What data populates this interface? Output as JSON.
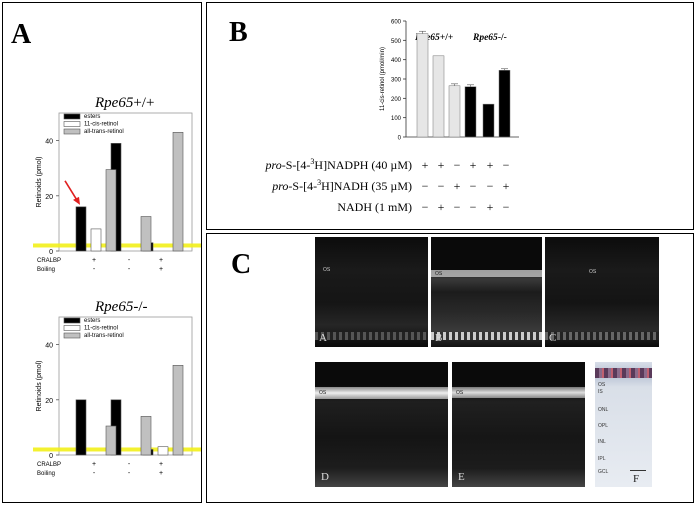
{
  "panels": {
    "A": "A",
    "B": "B",
    "C": "C"
  },
  "chart_data": [
    {
      "type": "bar",
      "panel": "A",
      "title": "Rpe65+/+",
      "ylabel": "Retinoids (pmol)",
      "ylim": [
        0,
        50
      ],
      "yticks": [
        0,
        20,
        40
      ],
      "group_labels": [
        "CRALBP",
        "Boiling"
      ],
      "group_values": [
        [
          "+",
          "-",
          "+"
        ],
        [
          "-",
          "-",
          "+"
        ]
      ],
      "series": [
        {
          "name": "esters",
          "color": "#000000",
          "values": [
            16,
            39,
            3
          ]
        },
        {
          "name": "11-cis-retinol",
          "color": "#ffffff",
          "values": [
            8,
            0,
            0
          ]
        },
        {
          "name": "all-trans-retinol",
          "color": "#c0c0c0",
          "values": [
            29.5,
            12.5,
            43
          ]
        }
      ],
      "baseline_color": "#f2ef1a",
      "arrow_color": "#e02020"
    },
    {
      "type": "bar",
      "panel": "A",
      "title": "Rpe65-/-",
      "ylabel": "Retinoids (pmol)",
      "ylim": [
        0,
        50
      ],
      "yticks": [
        0,
        20,
        40
      ],
      "group_labels": [
        "CRALBP",
        "Boiling"
      ],
      "group_values": [
        [
          "+",
          "-",
          "+"
        ],
        [
          "-",
          "-",
          "+"
        ]
      ],
      "series": [
        {
          "name": "esters",
          "color": "#000000",
          "values": [
            20,
            20,
            2
          ]
        },
        {
          "name": "11-cis-retinol",
          "color": "#ffffff",
          "values": [
            0,
            0,
            3
          ]
        },
        {
          "name": "all-trans-retinol",
          "color": "#c0c0c0",
          "values": [
            10.5,
            14,
            32.5
          ]
        }
      ],
      "baseline_color": "#f2ef1a"
    },
    {
      "type": "bar",
      "panel": "B",
      "ylabel": "11-cis-retinol (pmol/min)",
      "ylim": [
        0,
        600
      ],
      "yticks": [
        0,
        100,
        200,
        300,
        400,
        500,
        600
      ],
      "group_titles": [
        "Rpe65+/+",
        "Rpe65-/-"
      ],
      "values": [
        535,
        420,
        265,
        260,
        170,
        345
      ],
      "errors": [
        12,
        0,
        10,
        10,
        0,
        8
      ],
      "colors": [
        "#e6e6e6",
        "#e6e6e6",
        "#e6e6e6",
        "#000000",
        "#000000",
        "#000000"
      ],
      "rows": [
        {
          "prefix": "pro",
          "label": "-S-[4-",
          "sup": "3",
          "label2": "H]NADPH (40 µM)",
          "signs": [
            "+",
            "+",
            "−",
            "+",
            "+",
            "−"
          ]
        },
        {
          "prefix": "pro",
          "label": "-S-[4-",
          "sup": "3",
          "label2": "H]NADH (35 µM)",
          "signs": [
            "−",
            "−",
            "+",
            "−",
            "−",
            "+"
          ]
        },
        {
          "prefix": "",
          "label": "NADH (1 mM)",
          "sup": "",
          "label2": "",
          "signs": [
            "−",
            "+",
            "−",
            "−",
            "+",
            "−"
          ]
        }
      ]
    }
  ],
  "micrographs": {
    "top": [
      {
        "label": "A",
        "os": "OS"
      },
      {
        "label": "B",
        "os": "OS"
      },
      {
        "label": "C",
        "os": "OS"
      }
    ],
    "bottom": [
      {
        "label": "D",
        "os": "OS"
      },
      {
        "label": "E",
        "os": "OS"
      }
    ],
    "histology": {
      "label": "F",
      "layers": [
        "OS",
        "IS",
        "ONL",
        "OPL",
        "INL",
        "IPL",
        "GCL"
      ]
    }
  }
}
